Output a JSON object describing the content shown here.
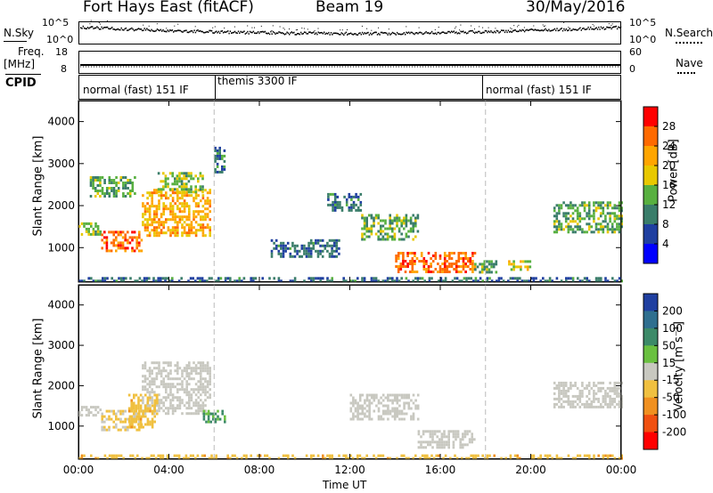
{
  "header": {
    "station": "Fort Hays East (fitACF)",
    "beam": "Beam 19",
    "date": "30/May/2016"
  },
  "noise_panel": {
    "left_label": "N.Sky",
    "right_label": "N.Search",
    "left_ticks": [
      "10^5",
      "10^0"
    ],
    "right_ticks": [
      "10^5",
      "10^0"
    ]
  },
  "freq_panel": {
    "left_label_1": "Freq.",
    "left_label_2": "[MHz]",
    "right_label": "Nave",
    "left_ticks": [
      "18",
      "8"
    ],
    "right_ticks": [
      "60",
      "0"
    ]
  },
  "cpid": {
    "label": "CPID",
    "segments": [
      {
        "name": "normal (fast) 151 IF",
        "start_h": 0,
        "end_h": 6
      },
      {
        "name": "themis 3300 IF",
        "start_h": 6,
        "end_h": 18
      },
      {
        "name": "normal (fast) 151 IF",
        "start_h": 18,
        "end_h": 24
      }
    ]
  },
  "power_panel": {
    "ylabel": "Slant Range [km]",
    "colorbar_label": "Power [dB]",
    "colorbar_ticks": [
      "28",
      "24",
      "20",
      "16",
      "12",
      "8",
      "4"
    ],
    "colorbar_colors": [
      "#ff0000",
      "#ff6a00",
      "#ffa500",
      "#e8c800",
      "#58b040",
      "#3a7d6a",
      "#1f3fa0",
      "#0000ff"
    ]
  },
  "velocity_panel": {
    "ylabel": "Slant Range [km]",
    "colorbar_label": "Velocity [m s⁻¹]",
    "colorbar_ticks": [
      "200",
      "100",
      "50",
      "15",
      "-15",
      "-50",
      "-100",
      "-200"
    ],
    "colorbar_colors": [
      "#1f3fa0",
      "#2f6f8f",
      "#3c8a68",
      "#6ac040",
      "#c8c8c0",
      "#f0c040",
      "#f09020",
      "#f05010",
      "#ff0000"
    ]
  },
  "y_ticks": [
    "4000",
    "3000",
    "2000",
    "1000"
  ],
  "x_axis": {
    "label": "Time UT",
    "ticks": [
      "00:00",
      "04:00",
      "08:00",
      "12:00",
      "16:00",
      "20:00",
      "00:00"
    ]
  },
  "chart_data": [
    {
      "type": "heatmap",
      "title": "Power [dB]",
      "xlabel": "",
      "ylabel": "Slant Range [km]",
      "xlim": [
        0,
        24
      ],
      "ylim": [
        180,
        4500
      ],
      "x_units": "hours UT",
      "colorbar_range": [
        0,
        30
      ],
      "regions": [
        {
          "t0": 0.0,
          "t1": 1.0,
          "r0": 1300,
          "r1": 1600,
          "value": 14
        },
        {
          "t0": 1.0,
          "t1": 2.8,
          "r0": 900,
          "r1": 1400,
          "value": 24
        },
        {
          "t0": 2.8,
          "t1": 5.8,
          "r0": 1300,
          "r1": 2400,
          "value": 20
        },
        {
          "t0": 0.5,
          "t1": 2.5,
          "r0": 2200,
          "r1": 2700,
          "value": 12
        },
        {
          "t0": 3.5,
          "t1": 5.5,
          "r0": 2300,
          "r1": 2800,
          "value": 14
        },
        {
          "t0": 6.0,
          "t1": 6.5,
          "r0": 2800,
          "r1": 3400,
          "value": 8
        },
        {
          "t0": 8.5,
          "t1": 11.5,
          "r0": 800,
          "r1": 1200,
          "value": 8
        },
        {
          "t0": 11.0,
          "t1": 12.5,
          "r0": 1900,
          "r1": 2300,
          "value": 8
        },
        {
          "t0": 12.5,
          "t1": 15.0,
          "r0": 1200,
          "r1": 1800,
          "value": 12
        },
        {
          "t0": 14.0,
          "t1": 17.5,
          "r0": 400,
          "r1": 900,
          "value": 24
        },
        {
          "t0": 17.5,
          "t1": 18.5,
          "r0": 400,
          "r1": 700,
          "value": 12
        },
        {
          "t0": 19.0,
          "t1": 20.0,
          "r0": 500,
          "r1": 700,
          "value": 16
        },
        {
          "t0": 21.0,
          "t1": 24.0,
          "r0": 1400,
          "r1": 2100,
          "value": 12
        },
        {
          "t0": 0.0,
          "t1": 24.0,
          "r0": 180,
          "r1": 300,
          "value": 8
        }
      ]
    },
    {
      "type": "heatmap",
      "title": "Velocity [m s⁻¹]",
      "xlabel": "Time UT",
      "ylabel": "Slant Range [km]",
      "xlim": [
        0,
        24
      ],
      "ylim": [
        180,
        4500
      ],
      "x_units": "hours UT",
      "colorbar_range": [
        -200,
        200
      ],
      "regions": [
        {
          "t0": 0.0,
          "t1": 1.0,
          "r0": 1300,
          "r1": 1500,
          "value": 0
        },
        {
          "t0": 1.0,
          "t1": 2.8,
          "r0": 900,
          "r1": 1400,
          "value": -30
        },
        {
          "t0": 2.8,
          "t1": 5.8,
          "r0": 1300,
          "r1": 2600,
          "value": 0
        },
        {
          "t0": 2.2,
          "t1": 3.5,
          "r0": 1000,
          "r1": 1800,
          "value": -50
        },
        {
          "t0": 5.5,
          "t1": 6.5,
          "r0": 1100,
          "r1": 1400,
          "value": 80
        },
        {
          "t0": 12.0,
          "t1": 15.0,
          "r0": 1200,
          "r1": 1800,
          "value": 0
        },
        {
          "t0": 15.0,
          "t1": 17.5,
          "r0": 500,
          "r1": 900,
          "value": 0
        },
        {
          "t0": 21.0,
          "t1": 24.0,
          "r0": 1500,
          "r1": 2100,
          "value": 0
        },
        {
          "t0": 0.0,
          "t1": 24.0,
          "r0": 180,
          "r1": 300,
          "value": -50
        }
      ]
    }
  ]
}
